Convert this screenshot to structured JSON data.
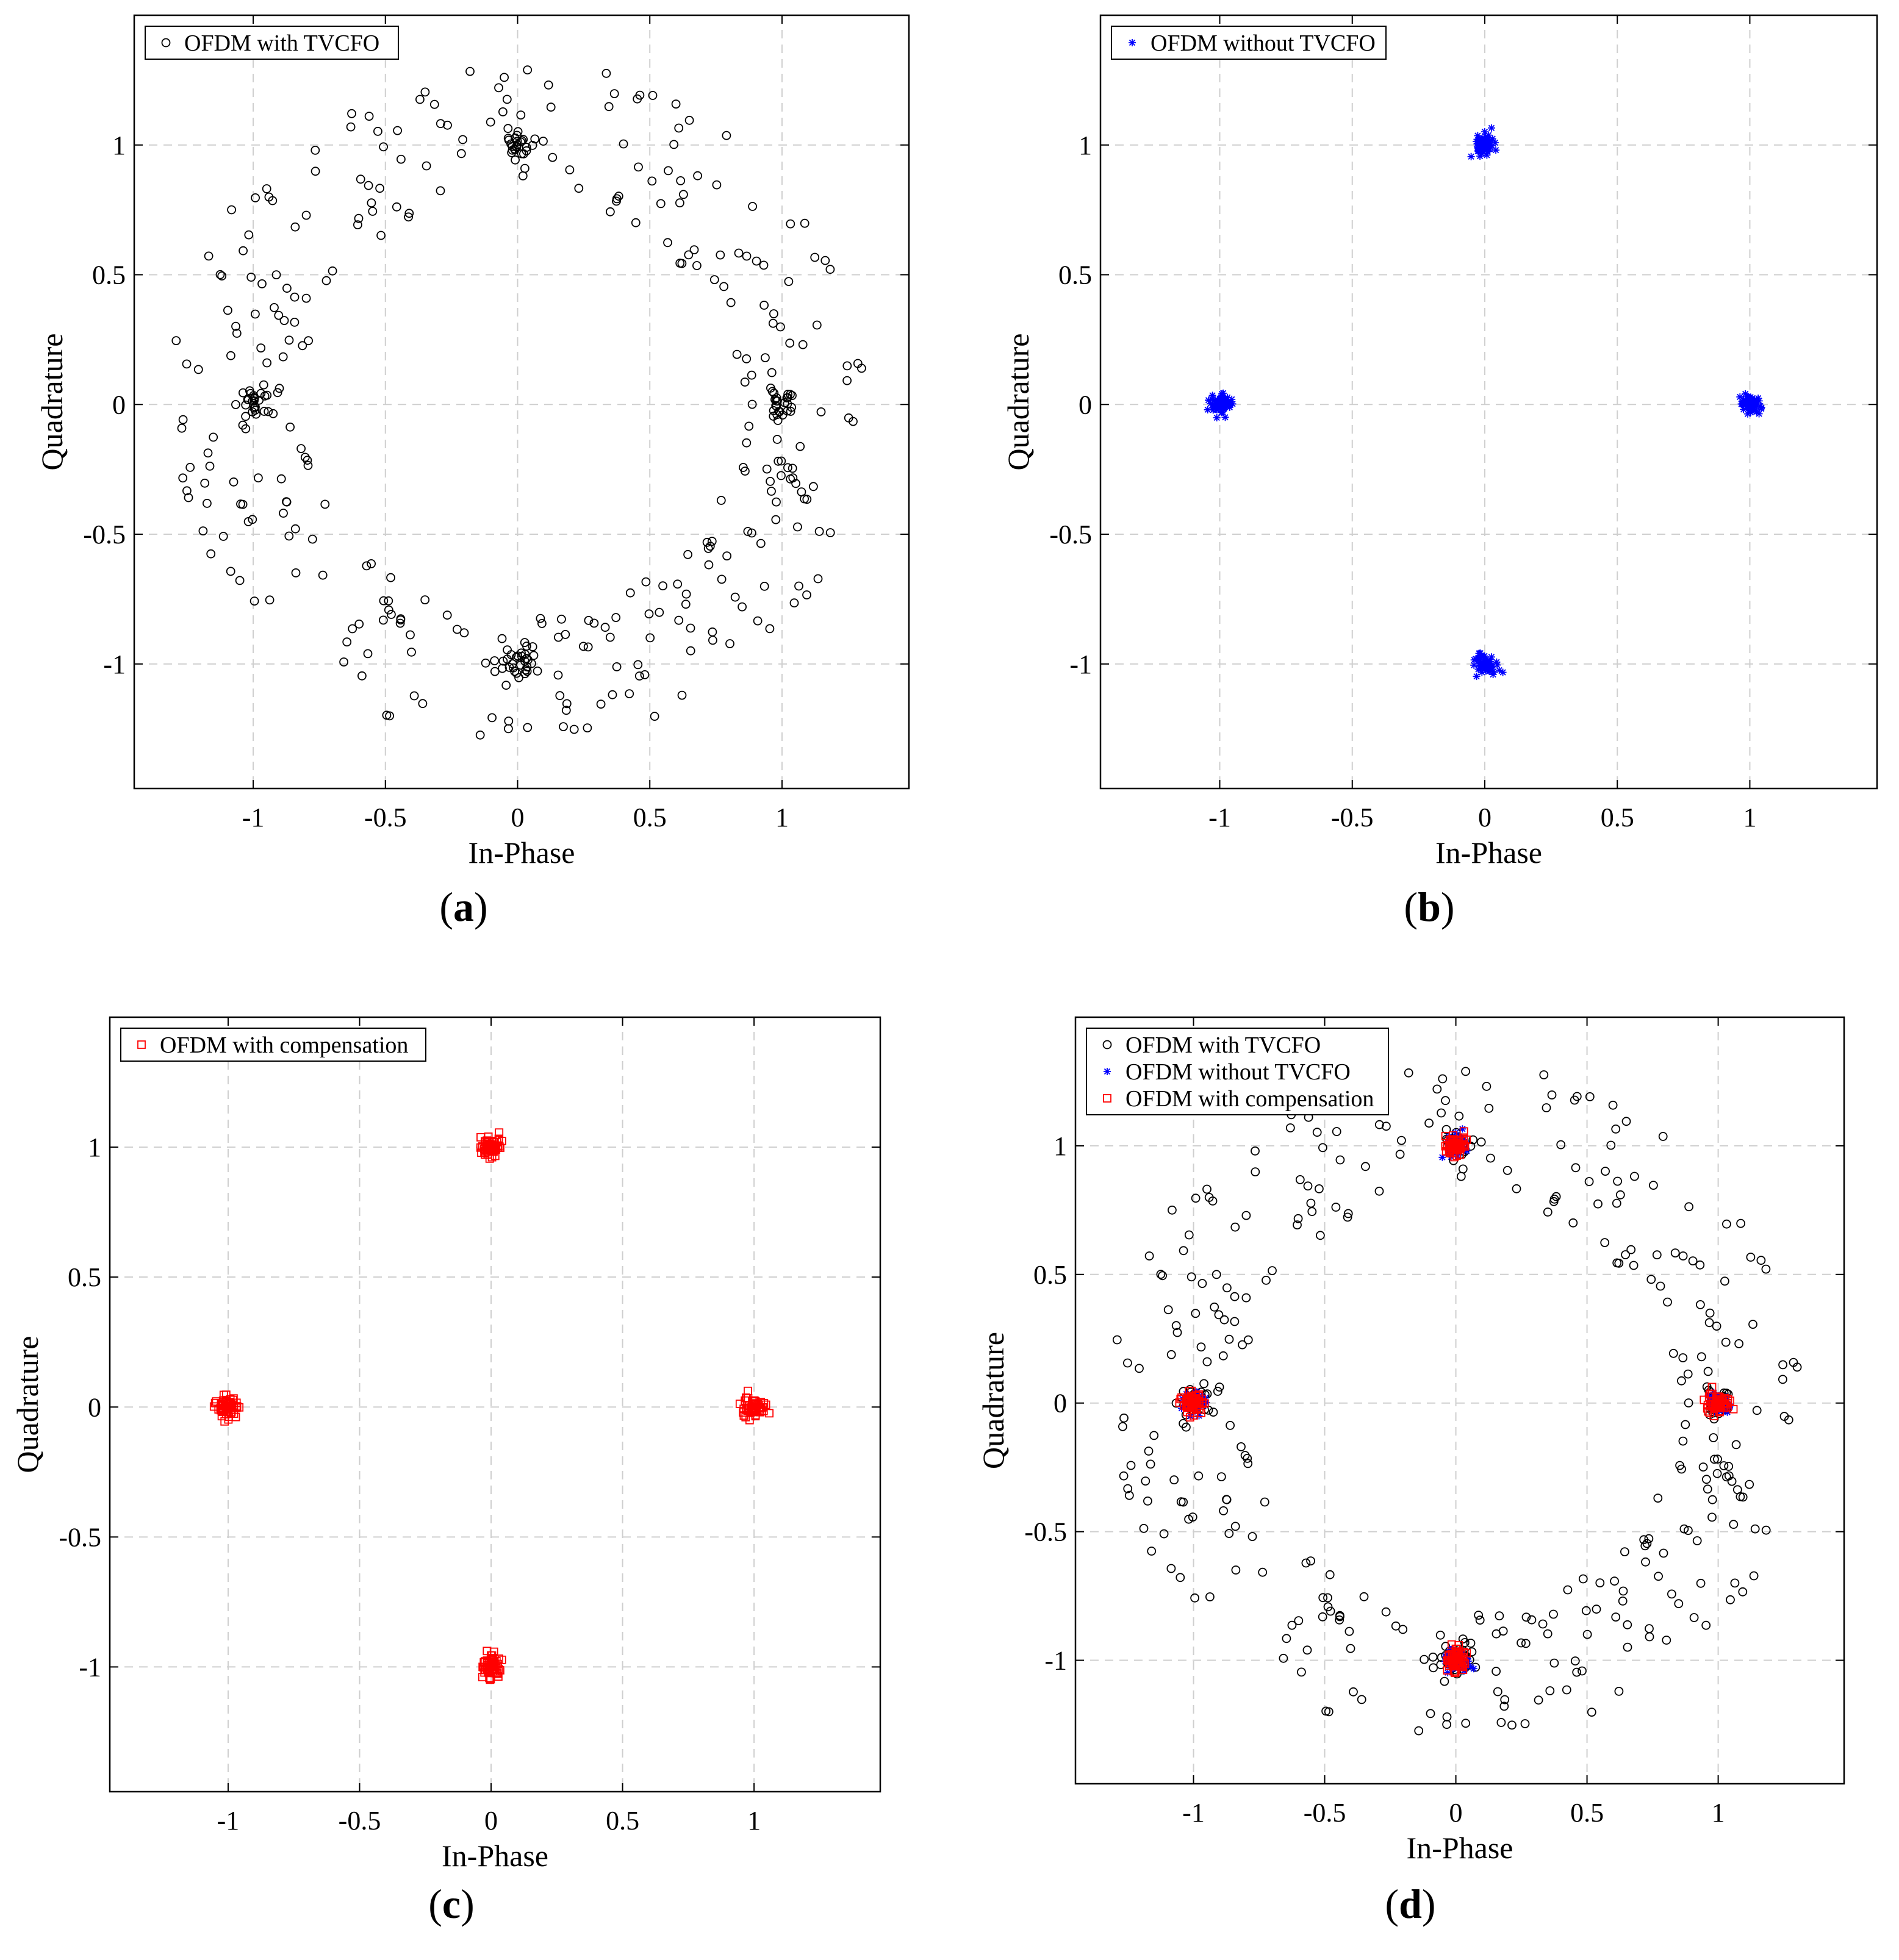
{
  "figure_title": "",
  "chart_data": [
    {
      "panel": "a",
      "type": "scatter",
      "title": "",
      "caption_open": "(",
      "caption_letter": "a",
      "caption_close": ")",
      "xlabel": "In-Phase",
      "ylabel": "Quadrature",
      "xlim": [
        -1.45,
        1.48
      ],
      "ylim": [
        -1.48,
        1.5
      ],
      "xticks": [
        -1,
        -0.5,
        0,
        0.5,
        1
      ],
      "xtick_labels": [
        "-1",
        "-0.5",
        "0",
        "0.5",
        "1"
      ],
      "yticks": [
        -1,
        -0.5,
        0,
        0.5,
        1
      ],
      "ytick_labels": [
        "-1",
        "-0.5",
        "0",
        "0.5",
        "1"
      ],
      "grid": true,
      "legend_position": "top-left",
      "series": [
        {
          "name": "OFDM with TVCFO",
          "marker": "circle",
          "color": "#000000",
          "spread_points": 330,
          "cluster_points": 25,
          "cluster_sigma": 0.028,
          "seed": 11
        }
      ]
    },
    {
      "panel": "b",
      "type": "scatter",
      "title": "",
      "caption_open": "(",
      "caption_letter": "b",
      "caption_close": ")",
      "xlabel": "In-Phase",
      "ylabel": "Quadrature",
      "xlim": [
        -1.45,
        1.48
      ],
      "ylim": [
        -1.48,
        1.5
      ],
      "xticks": [
        -1,
        -0.5,
        0,
        0.5,
        1
      ],
      "xtick_labels": [
        "-1",
        "-0.5",
        "0",
        "0.5",
        "1"
      ],
      "yticks": [
        -1,
        -0.5,
        0,
        0.5,
        1
      ],
      "ytick_labels": [
        "-1",
        "-0.5",
        "0",
        "0.5",
        "1"
      ],
      "grid": true,
      "legend_position": "top-left",
      "series": [
        {
          "name": "OFDM without TVCFO",
          "marker": "star",
          "color": "#0000ff",
          "spread_points": 0,
          "cluster_points": 60,
          "cluster_sigma": 0.02,
          "seed": 23
        }
      ]
    },
    {
      "panel": "c",
      "type": "scatter",
      "title": "",
      "caption_open": "(",
      "caption_letter": "c",
      "caption_close": ")",
      "xlabel": "In-Phase",
      "ylabel": "Quadrature",
      "xlim": [
        -1.45,
        1.48
      ],
      "ylim": [
        -1.48,
        1.5
      ],
      "xticks": [
        -1,
        -0.5,
        0,
        0.5,
        1
      ],
      "xtick_labels": [
        "-1",
        "-0.5",
        "0",
        "0.5",
        "1"
      ],
      "yticks": [
        -1,
        -0.5,
        0,
        0.5,
        1
      ],
      "ytick_labels": [
        "-1",
        "-0.5",
        "0",
        "0.5",
        "1"
      ],
      "grid": true,
      "legend_position": "top-left",
      "series": [
        {
          "name": "OFDM with compensation",
          "marker": "square",
          "color": "#ff0000",
          "spread_points": 0,
          "cluster_points": 60,
          "cluster_sigma": 0.02,
          "seed": 37
        }
      ]
    },
    {
      "panel": "d",
      "type": "scatter",
      "title": "",
      "caption_open": "(",
      "caption_letter": "d",
      "caption_close": ")",
      "xlabel": "In-Phase",
      "ylabel": "Quadrature",
      "xlim": [
        -1.45,
        1.48
      ],
      "ylim": [
        -1.48,
        1.5
      ],
      "xticks": [
        -1,
        -0.5,
        0,
        0.5,
        1
      ],
      "xtick_labels": [
        "-1",
        "-0.5",
        "0",
        "0.5",
        "1"
      ],
      "yticks": [
        -1,
        -0.5,
        0,
        0.5,
        1
      ],
      "ytick_labels": [
        "-1",
        "-0.5",
        "0",
        "0.5",
        "1"
      ],
      "grid": true,
      "legend_position": "top-left",
      "series": [
        {
          "name": "OFDM with TVCFO",
          "marker": "circle",
          "color": "#000000",
          "spread_points": 330,
          "cluster_points": 25,
          "cluster_sigma": 0.028,
          "seed": 11
        },
        {
          "name": "OFDM without TVCFO",
          "marker": "star",
          "color": "#0000ff",
          "spread_points": 0,
          "cluster_points": 60,
          "cluster_sigma": 0.02,
          "seed": 23
        },
        {
          "name": "OFDM with compensation",
          "marker": "square",
          "color": "#ff0000",
          "spread_points": 0,
          "cluster_points": 60,
          "cluster_sigma": 0.02,
          "seed": 37
        }
      ]
    }
  ]
}
